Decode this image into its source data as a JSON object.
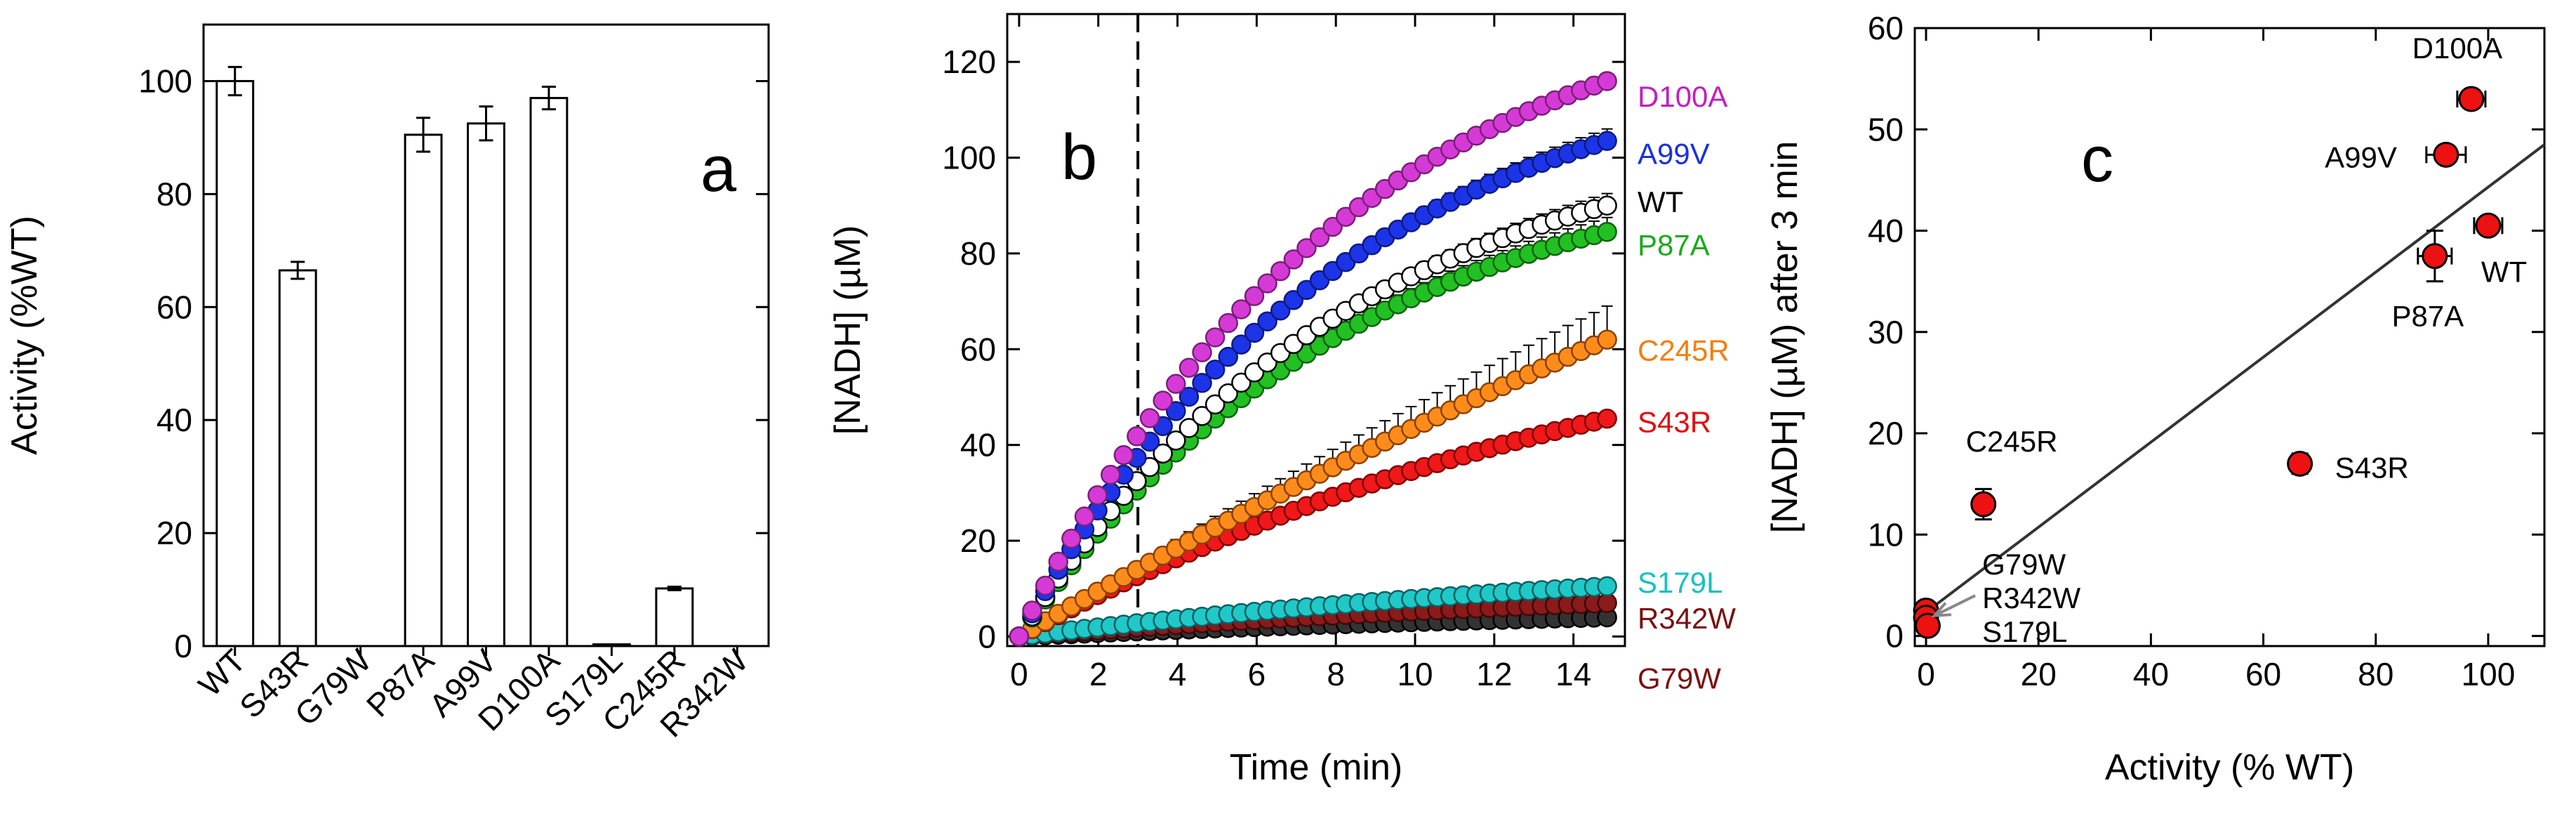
{
  "chart_data": [
    {
      "type": "bar",
      "panel_letter": "a",
      "ylabel": "Activity (%WT)",
      "xlabel": "",
      "ylim": [
        0,
        110
      ],
      "yticks": [
        0,
        20,
        40,
        60,
        80,
        100
      ],
      "categories": [
        "WT",
        "S43R",
        "G79W",
        "P87A",
        "A99V",
        "D100A",
        "S179L",
        "C245R",
        "R342W"
      ],
      "values": [
        100,
        66.5,
        0,
        90.5,
        92.5,
        97,
        0.3,
        10.2,
        0
      ],
      "errors": [
        2.5,
        1.5,
        0,
        3,
        3,
        2,
        0.2,
        0.3,
        0
      ]
    },
    {
      "type": "scatter",
      "panel_letter": "b",
      "xlabel": "Time (min)",
      "ylabel": "[NADH] (µM)",
      "xlim": [
        -0.3,
        15.3
      ],
      "ylim": [
        -2,
        130
      ],
      "xticks": [
        0,
        2,
        4,
        6,
        8,
        10,
        12,
        14
      ],
      "yticks": [
        0,
        20,
        40,
        60,
        80,
        100,
        120
      ],
      "marker_line_time": 3,
      "time_step": 0.33,
      "n_points": 46,
      "series": [
        {
          "name": "D100A",
          "final": 116,
          "k": 0.12,
          "color": "#d63ad6",
          "edge": "#7a1f7a",
          "label_color": "#c020c0",
          "err": 1.5
        },
        {
          "name": "A99V",
          "final": 103.5,
          "k": 0.12,
          "color": "#1c34e8",
          "edge": "#0c1a80",
          "label_color": "#1a30e0",
          "err": 2.5
        },
        {
          "name": "WT",
          "final": 90,
          "k": 0.12,
          "color": "#ffffff",
          "edge": "#000000",
          "label_color": "#000000",
          "err": 2.5
        },
        {
          "name": "P87A",
          "final": 84.5,
          "k": 0.12,
          "color": "#22c022",
          "edge": "#0d600d",
          "label_color": "#1aaa1a",
          "err": 3
        },
        {
          "name": "C245R",
          "final": 62,
          "k": 0.02,
          "color": "#ff8c1a",
          "edge": "#8a4000",
          "label_color": "#f07f10",
          "err": 7
        },
        {
          "name": "S43R",
          "final": 45.5,
          "k": 0.06,
          "color": "#f01818",
          "edge": "#800000",
          "label_color": "#e01010",
          "err": 1.5
        },
        {
          "name": "S179L",
          "final": 10.5,
          "k": 0.05,
          "color": "#20c8c8",
          "edge": "#0a6060",
          "label_color": "#18c0c0",
          "err": 1.5
        },
        {
          "name": "R342W",
          "final": 7,
          "k": 0.05,
          "color": "#8b1a1a",
          "edge": "#400808",
          "label_color": "#7a1010",
          "err": 1
        },
        {
          "name": "G79W",
          "final": 4,
          "k": 0.05,
          "color": "#333333",
          "edge": "#000000",
          "label_color": "#7a1010",
          "err": 1
        }
      ]
    },
    {
      "type": "scatter",
      "panel_letter": "c",
      "xlabel": "Activity (% WT)",
      "ylabel": "[NADH] (µM) after 3 min",
      "xlim": [
        -2,
        110
      ],
      "ylim": [
        -1,
        60
      ],
      "xticks": [
        0,
        20,
        40,
        60,
        80,
        100
      ],
      "yticks": [
        0,
        10,
        20,
        30,
        40,
        50,
        60
      ],
      "fit_line": {
        "x0": -2,
        "y0": 1.5,
        "x1": 110,
        "y1": 48.5
      },
      "points": [
        {
          "name": "D100A",
          "x": 97,
          "y": 53,
          "xerr": 2.5,
          "yerr": 0.8
        },
        {
          "name": "A99V",
          "x": 92.5,
          "y": 47.5,
          "xerr": 3.5,
          "yerr": 0.8
        },
        {
          "name": "WT",
          "x": 100,
          "y": 40.5,
          "xerr": 2.5,
          "yerr": 0.8
        },
        {
          "name": "P87A",
          "x": 90.5,
          "y": 37.5,
          "xerr": 3,
          "yerr": 2.5
        },
        {
          "name": "S43R",
          "x": 66.5,
          "y": 17,
          "xerr": 1.5,
          "yerr": 1
        },
        {
          "name": "C245R",
          "x": 10.2,
          "y": 13,
          "xerr": 0.5,
          "yerr": 1.5
        },
        {
          "name": "G79W",
          "x": 0,
          "y": 2.5,
          "xerr": 0,
          "yerr": 0.4
        },
        {
          "name": "R342W",
          "x": 0,
          "y": 1.8,
          "xerr": 0,
          "yerr": 0.4
        },
        {
          "name": "S179L",
          "x": 0.3,
          "y": 1,
          "xerr": 0,
          "yerr": 0.4
        }
      ],
      "annotations": [
        "G79W",
        "R342W",
        "S179L"
      ]
    }
  ]
}
